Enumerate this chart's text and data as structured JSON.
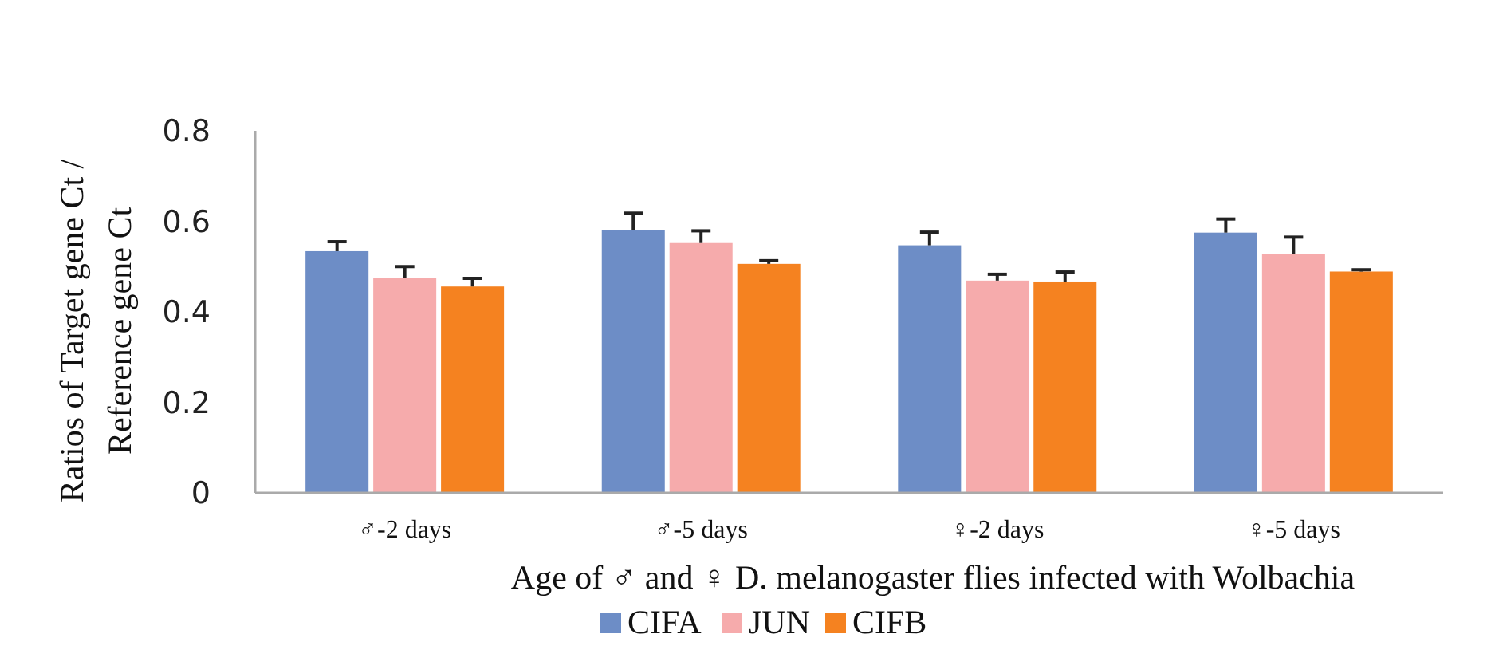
{
  "chart_data": {
    "type": "bar",
    "ylabel": "Ratios of Target gene Ct / Reference gene Ct",
    "xlabel": "Age of ♂ and ♀ D. melanogaster flies infected with Wolbachia",
    "categories": [
      "♂-2 days",
      "♂-5 days",
      "♀-2 days",
      "♀-5 days"
    ],
    "series": [
      {
        "name": "CIFA",
        "color": "#6d8dc6",
        "values": [
          0.534,
          0.58,
          0.547,
          0.575
        ],
        "errors": [
          [
            0.534,
            0.555
          ],
          [
            0.58,
            0.618
          ],
          [
            0.547,
            0.576
          ],
          [
            0.575,
            0.605
          ]
        ]
      },
      {
        "name": "JUN",
        "color": "#f6abac",
        "values": [
          0.474,
          0.552,
          0.469,
          0.528
        ],
        "errors": [
          [
            0.474,
            0.5
          ],
          [
            0.552,
            0.579
          ],
          [
            0.469,
            0.483
          ],
          [
            0.528,
            0.565
          ]
        ]
      },
      {
        "name": "CIFB",
        "color": "#f58220",
        "values": [
          0.456,
          0.506,
          0.467,
          0.489
        ],
        "errors": [
          [
            0.456,
            0.474
          ],
          [
            0.506,
            0.513
          ],
          [
            0.467,
            0.488
          ],
          [
            0.489,
            0.493
          ]
        ]
      }
    ],
    "ylim": [
      0,
      0.8
    ],
    "yticks": [
      0,
      0.2,
      0.4,
      0.6,
      0.8
    ],
    "grid": false,
    "legend": "bottom"
  }
}
